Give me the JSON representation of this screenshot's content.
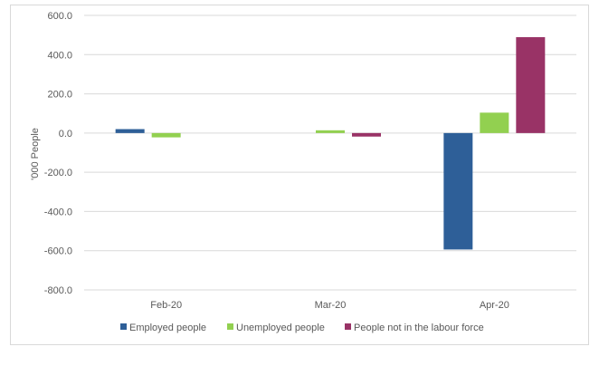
{
  "chart_data": {
    "type": "bar",
    "title": "",
    "xlabel": "",
    "ylabel": "'000 People",
    "categories": [
      "Feb-20",
      "Mar-20",
      "Apr-20"
    ],
    "series": [
      {
        "name": "Employed people",
        "color": "#2e5f98",
        "values": [
          20,
          0,
          -594
        ]
      },
      {
        "name": "Unemployed people",
        "color": "#92d050",
        "values": [
          -22,
          14,
          104
        ]
      },
      {
        "name": "People not in the labour force",
        "color": "#993366",
        "values": [
          0,
          -18,
          489
        ]
      }
    ],
    "ylim": [
      -800,
      600
    ],
    "yticks": [
      600,
      400,
      200,
      0,
      -200,
      -400,
      -600,
      -800
    ],
    "ytick_labels": [
      "600.0",
      "400.0",
      "200.0",
      "0.0",
      "-200.0",
      "-400.0",
      "-600.0",
      "-800.0"
    ],
    "grid": true,
    "legend_position": "bottom"
  }
}
